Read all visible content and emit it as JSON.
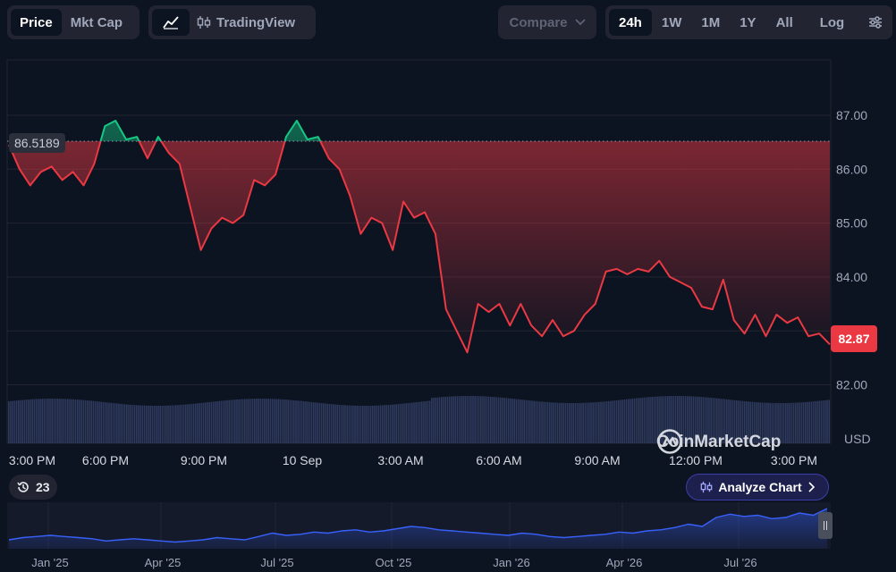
{
  "toolbar": {
    "type_tabs": [
      {
        "label": "Price",
        "active": true
      },
      {
        "label": "Mkt Cap",
        "active": false
      }
    ],
    "tradingview_label": "TradingView",
    "compare_label": "Compare",
    "range_tabs": [
      {
        "label": "24h",
        "active": true
      },
      {
        "label": "1W",
        "active": false
      },
      {
        "label": "1M",
        "active": false
      },
      {
        "label": "1Y",
        "active": false
      },
      {
        "label": "All",
        "active": false
      }
    ],
    "log_label": "Log"
  },
  "chart": {
    "reference_price": "86.5189",
    "current_price": "82.87",
    "currency": "USD",
    "watermark": "CoinMarketCap",
    "colors": {
      "up": "#16c784",
      "down": "#ea3943",
      "background": "#0d1421",
      "grid": "#222531",
      "volume": "#2f3b5e",
      "navigator": "#3861fb"
    }
  },
  "chart_data": {
    "type": "line",
    "ylim": [
      81.1,
      88.1
    ],
    "y_ticks": [
      "87.00",
      "86.00",
      "85.00",
      "84.00",
      "83.00",
      "82.00"
    ],
    "x_ticks": [
      "3:00 PM",
      "6:00 PM",
      "9:00 PM",
      "10 Sep",
      "3:00 AM",
      "6:00 AM",
      "9:00 AM",
      "12:00 PM",
      "3:00 PM"
    ],
    "x": [
      "2:55 PM",
      "3:10 PM",
      "3:25 PM",
      "3:40 PM",
      "4:00 PM",
      "4:20 PM",
      "4:40 PM",
      "5:00 PM",
      "5:20 PM",
      "5:40 PM",
      "6:00 PM",
      "6:15 PM",
      "6:30 PM",
      "6:45 PM",
      "7:00 PM",
      "7:20 PM",
      "7:40 PM",
      "8:00 PM",
      "8:20 PM",
      "8:40 PM",
      "9:00 PM",
      "9:15 PM",
      "9:30 PM",
      "9:45 PM",
      "10:00 PM",
      "10:20 PM",
      "10:40 PM",
      "11:00 PM",
      "11:20 PM",
      "11:40 PM",
      "12:00 AM",
      "12:20 AM",
      "12:40 AM",
      "1:00 AM",
      "1:20 AM",
      "1:40 AM",
      "2:00 AM",
      "2:20 AM",
      "2:40 AM",
      "3:00 AM",
      "3:20 AM",
      "3:40 AM",
      "4:00 AM",
      "4:20 AM",
      "4:40 AM",
      "5:00 AM",
      "5:20 AM",
      "5:40 AM",
      "6:00 AM",
      "6:20 AM",
      "6:40 AM",
      "7:00 AM",
      "7:20 AM",
      "7:40 AM",
      "8:00 AM",
      "8:20 AM",
      "8:40 AM",
      "9:00 AM",
      "9:20 AM",
      "9:40 AM",
      "10:00 AM",
      "10:20 AM",
      "10:40 AM",
      "11:00 AM",
      "11:20 AM",
      "11:40 AM",
      "12:00 PM",
      "12:20 PM",
      "12:40 PM",
      "1:00 PM",
      "1:20 PM",
      "1:40 PM",
      "2:00 PM",
      "2:20 PM",
      "2:40 PM",
      "3:00 PM",
      "3:20 PM",
      "3:40 PM"
    ],
    "values": [
      86.45,
      86.0,
      85.7,
      85.95,
      86.05,
      85.8,
      85.95,
      85.7,
      86.1,
      86.8,
      86.9,
      86.55,
      86.6,
      86.2,
      86.6,
      86.3,
      86.1,
      85.3,
      84.5,
      84.9,
      85.1,
      85.0,
      85.15,
      85.8,
      85.7,
      85.9,
      86.6,
      86.9,
      86.55,
      86.6,
      86.2,
      86.0,
      85.5,
      84.8,
      85.1,
      85.0,
      84.5,
      85.4,
      85.1,
      85.2,
      84.8,
      83.4,
      83.0,
      82.6,
      83.5,
      83.35,
      83.5,
      83.1,
      83.5,
      83.1,
      82.9,
      83.2,
      82.9,
      83.0,
      83.3,
      83.5,
      84.1,
      84.15,
      84.05,
      84.15,
      84.1,
      84.3,
      84.0,
      83.9,
      83.8,
      83.45,
      83.4,
      83.95,
      83.2,
      82.95,
      83.3,
      82.9,
      83.3,
      83.15,
      83.25,
      82.9,
      82.95,
      82.75
    ],
    "reference_value": 86.5189,
    "series": [
      {
        "name": "Price",
        "values": "values"
      }
    ]
  },
  "controls": {
    "history_count": "23",
    "analyze_label": "Analyze Chart"
  },
  "navigator": {
    "labels": [
      "Jan '25",
      "Apr '25",
      "Jul '25",
      "Oct '25",
      "Jan '26",
      "Apr '26",
      "Jul '26"
    ],
    "values": [
      38,
      40,
      41,
      42,
      41,
      40,
      39,
      37,
      38,
      39,
      38,
      37,
      36,
      37,
      38,
      40,
      39,
      38,
      41,
      44,
      42,
      43,
      45,
      44,
      46,
      47,
      45,
      46,
      48,
      50,
      49,
      47,
      46,
      45,
      44,
      43,
      42,
      44,
      43,
      41,
      40,
      41,
      42,
      43,
      45,
      44,
      46,
      47,
      49,
      52,
      50,
      58,
      61,
      59,
      60,
      57,
      58,
      62,
      60,
      66
    ]
  }
}
